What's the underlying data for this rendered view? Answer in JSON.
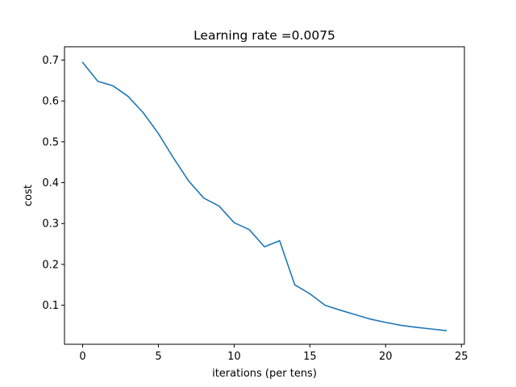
{
  "chart_data": {
    "type": "line",
    "title": "Learning rate =0.0075",
    "xlabel": "iterations (per tens)",
    "ylabel": "cost",
    "xlim": [
      -1.2,
      25.2
    ],
    "ylim": [
      0.0045,
      0.7325
    ],
    "x_ticks": [
      0,
      5,
      10,
      15,
      20,
      25
    ],
    "y_ticks": [
      0.1,
      0.2,
      0.3,
      0.4,
      0.5,
      0.6,
      0.7
    ],
    "y_tick_labels": [
      "0.1",
      "0.2",
      "0.3",
      "0.4",
      "0.5",
      "0.6",
      "0.7"
    ],
    "grid": false,
    "series": [
      {
        "color": "#1f77b4",
        "x": [
          0,
          1,
          2,
          3,
          4,
          5,
          6,
          7,
          8,
          9,
          10,
          11,
          12,
          13,
          14,
          15,
          16,
          17,
          18,
          19,
          20,
          21,
          22,
          23,
          24
        ],
        "y": [
          0.694,
          0.648,
          0.637,
          0.611,
          0.571,
          0.52,
          0.46,
          0.404,
          0.362,
          0.343,
          0.302,
          0.285,
          0.243,
          0.258,
          0.15,
          0.128,
          0.1,
          0.088,
          0.077,
          0.066,
          0.058,
          0.051,
          0.046,
          0.042,
          0.038
        ]
      }
    ]
  }
}
